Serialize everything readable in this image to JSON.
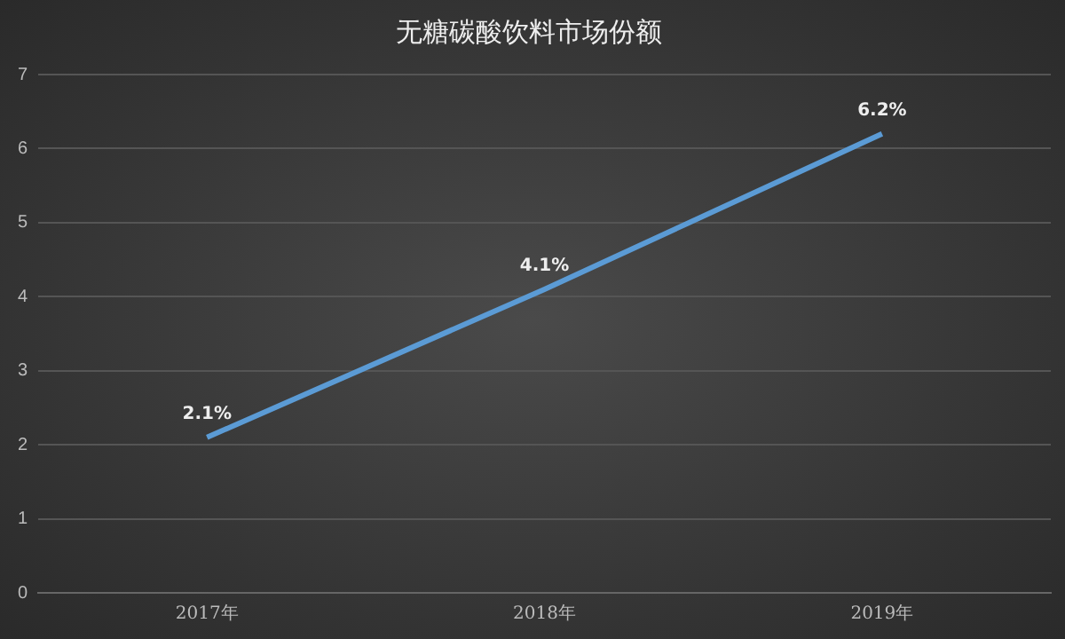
{
  "chart_data": {
    "type": "line",
    "title": "无糖碳酸饮料市场份额",
    "categories": [
      "2017年",
      "2018年",
      "2019年"
    ],
    "series": [
      {
        "color": "#5b9bd5",
        "values": [
          2.1,
          4.1,
          6.2
        ],
        "value_labels": [
          "2.1%",
          "4.1%",
          "6.2%"
        ]
      }
    ],
    "ylim": [
      0,
      7
    ],
    "yticks": [
      0,
      1,
      2,
      3,
      4,
      5,
      6,
      7
    ],
    "grid": "y",
    "legend": false,
    "marker": "none",
    "line_style": "solid"
  }
}
